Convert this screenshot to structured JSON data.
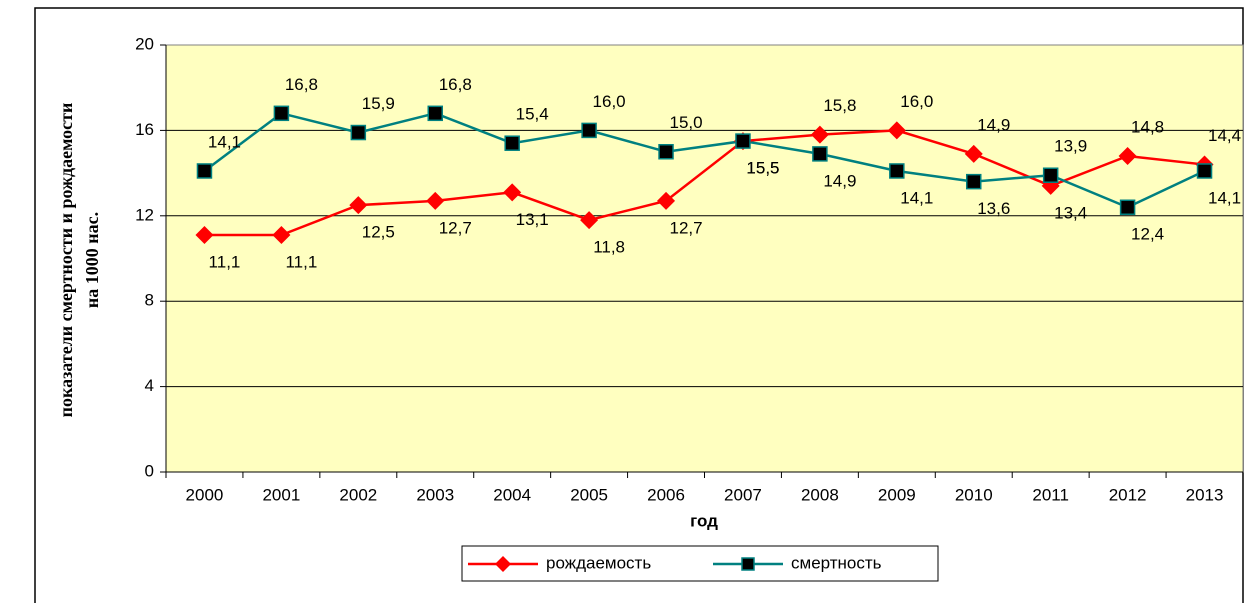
{
  "chart_data": {
    "type": "line",
    "ylabel": [
      "показатели смертности и рождаемости",
      "на 1000 нас."
    ],
    "xlabel": "год",
    "categories": [
      "2000",
      "2001",
      "2002",
      "2003",
      "2004",
      "2005",
      "2006",
      "2007",
      "2008",
      "2009",
      "2010",
      "2011",
      "2012",
      "2013"
    ],
    "series": [
      {
        "name": "рождаемость",
        "color": "#ff0000",
        "marker": "diamond",
        "values": [
          11.1,
          11.1,
          12.5,
          12.7,
          13.1,
          11.8,
          12.7,
          15.5,
          15.8,
          16.0,
          14.9,
          13.4,
          14.8,
          14.4
        ],
        "value_labels": [
          "11,1",
          "11,1",
          "12,5",
          "12,7",
          "13,1",
          "11,8",
          "12,7",
          "15,5",
          "15,8",
          "16,0",
          "14,9",
          "13,4",
          "14,8",
          "14,4"
        ]
      },
      {
        "name": "смертность",
        "color": "#008080",
        "marker": "square",
        "values": [
          14.1,
          16.8,
          15.9,
          16.8,
          15.4,
          16.0,
          15.0,
          15.5,
          14.9,
          14.1,
          13.6,
          13.9,
          12.4,
          14.1
        ],
        "value_labels": [
          "14,1",
          "16,8",
          "15,9",
          "16,8",
          "15,4",
          "16,0",
          "15,0",
          "15,5",
          "14,9",
          "14,1",
          "13,6",
          "13,9",
          "12,4",
          "14,1"
        ]
      }
    ],
    "ylim": [
      0,
      20
    ],
    "yticks": [
      0,
      4,
      8,
      12,
      16,
      20
    ],
    "grid": true,
    "legend": "bottom"
  }
}
